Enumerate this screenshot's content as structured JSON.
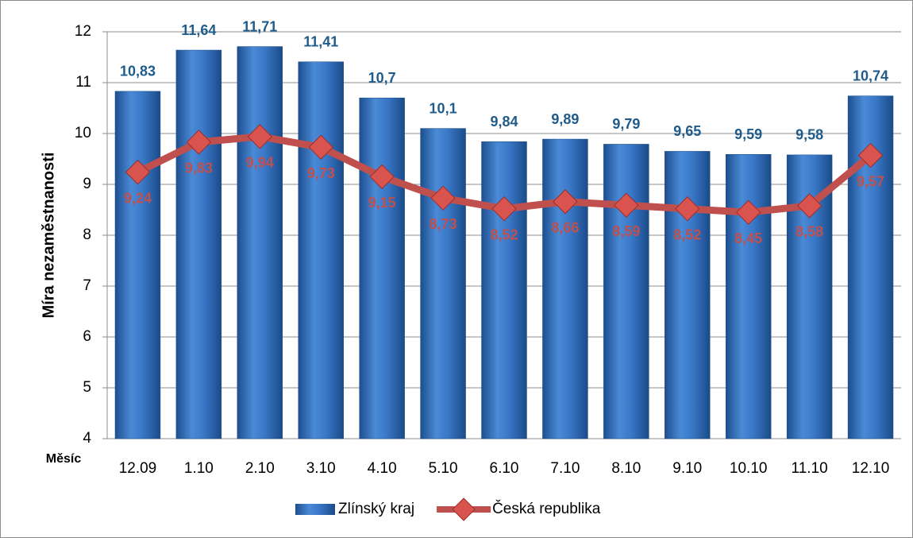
{
  "chart_data": {
    "type": "bar",
    "y_label": "Míra nezaměstnanosti",
    "x_label": "Měsíc",
    "categories": [
      "12.09",
      "1.10",
      "2.10",
      "3.10",
      "4.10",
      "5.10",
      "6.10",
      "7.10",
      "8.10",
      "9.10",
      "10.10",
      "11.10",
      "12.10"
    ],
    "series": [
      {
        "name": "Zlínský kraj",
        "type": "bar",
        "color": "#3a78c8",
        "values": [
          10.83,
          11.64,
          11.71,
          11.41,
          10.7,
          10.1,
          9.84,
          9.89,
          9.79,
          9.65,
          9.59,
          9.58,
          10.74
        ],
        "value_labels": [
          "10,83",
          "11,64",
          "11,71",
          "11,41",
          "10,7",
          "10,1",
          "9,84",
          "9,89",
          "9,79",
          "9,65",
          "9,59",
          "9,58",
          "10,74"
        ]
      },
      {
        "name": "Česká republika",
        "type": "line",
        "color": "#c0504d",
        "values": [
          9.24,
          9.83,
          9.94,
          9.73,
          9.15,
          8.73,
          8.52,
          8.66,
          8.59,
          8.52,
          8.45,
          8.58,
          9.57
        ],
        "value_labels": [
          "9,24",
          "9,83",
          "9,94",
          "9,73",
          "9,15",
          "8,73",
          "8,52",
          "8,66",
          "8,59",
          "8,52",
          "8,45",
          "8,58",
          "9,57"
        ]
      }
    ],
    "ylim": [
      4,
      12
    ],
    "yticks": [
      4,
      5,
      6,
      7,
      8,
      9,
      10,
      11,
      12
    ],
    "grid": true,
    "legend": "bottom"
  }
}
